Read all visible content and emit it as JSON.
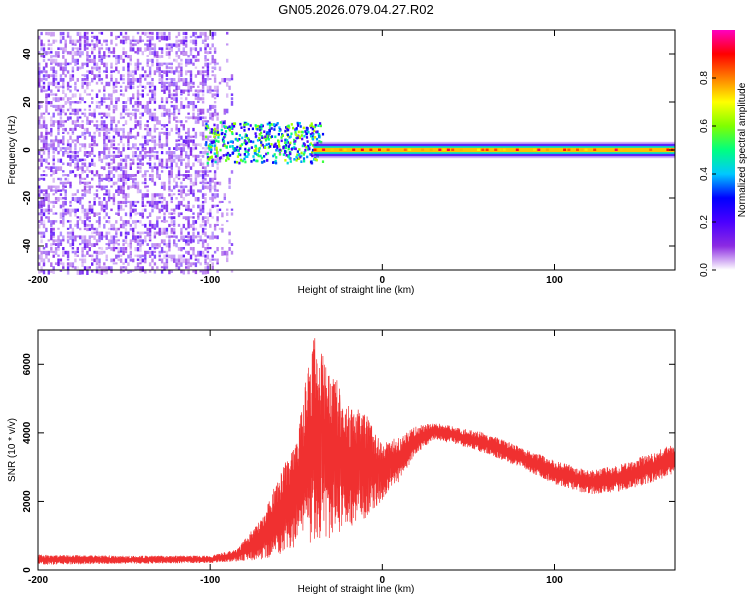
{
  "title": "GN05.2026.079.04.27.R02",
  "chart_data": [
    {
      "type": "heatmap",
      "xlabel": "Height of straight line (km)",
      "ylabel": "Frequency (Hz)",
      "xlim": [
        -200,
        170
      ],
      "ylim": [
        -50,
        50
      ],
      "xticks": [
        -200,
        -100,
        0,
        100
      ],
      "xtick_labels": [
        "-200",
        "-100",
        "0",
        "100"
      ],
      "yticks": [
        -40,
        -20,
        0,
        20,
        40
      ],
      "ytick_labels": [
        "-40",
        "-20",
        "0",
        "20",
        "40"
      ],
      "colorbar": {
        "label": "Normalized spectral amplitude",
        "range": [
          0,
          1
        ],
        "ticks": [
          0.0,
          0.2,
          0.4,
          0.6,
          0.8
        ],
        "tick_labels": [
          "0.0",
          "0.2",
          "0.4",
          "0.6",
          "0.8"
        ],
        "colormap": [
          "#ffffff",
          "#8c2be2",
          "#4b00ff",
          "#0000ff",
          "#00c8ff",
          "#00ff80",
          "#80ff00",
          "#ffff00",
          "#ff8000",
          "#ff0000",
          "#ff00c0"
        ]
      },
      "regions": [
        {
          "desc": "broadband noise",
          "x_range": [
            -200,
            -95
          ],
          "y_range": [
            -50,
            50
          ],
          "amplitude": 0.15
        },
        {
          "desc": "onset cluster",
          "x_range": [
            -103,
            -35
          ],
          "y_range": [
            -5,
            12
          ],
          "amplitude": 0.55
        },
        {
          "desc": "narrow line near 0 Hz",
          "x_range": [
            -40,
            170
          ],
          "y_range": [
            -3,
            3
          ],
          "amplitude": 0.75
        }
      ]
    },
    {
      "type": "line",
      "xlabel": "Height of straight line (km)",
      "ylabel": "SNR (10 * v/v)",
      "xlim": [
        -200,
        170
      ],
      "ylim": [
        0,
        7000
      ],
      "xticks": [
        -200,
        -100,
        0,
        100
      ],
      "xtick_labels": [
        "-200",
        "-100",
        "0",
        "100"
      ],
      "yticks": [
        0,
        2000,
        4000,
        6000
      ],
      "ytick_labels": [
        "0",
        "2000",
        "4000",
        "6000"
      ],
      "color": "#f03030",
      "envelope": {
        "x": [
          -200,
          -150,
          -100,
          -85,
          -70,
          -60,
          -50,
          -40,
          -30,
          -20,
          -10,
          0,
          10,
          20,
          30,
          40,
          60,
          80,
          100,
          120,
          140,
          160,
          170
        ],
        "low": [
          150,
          180,
          200,
          250,
          300,
          450,
          700,
          800,
          900,
          1200,
          1500,
          2000,
          2600,
          3400,
          3800,
          3700,
          3400,
          3000,
          2500,
          2200,
          2300,
          2600,
          2800
        ],
        "high": [
          450,
          420,
          420,
          600,
          1500,
          2700,
          3800,
          6800,
          5800,
          4800,
          4500,
          3700,
          3900,
          4200,
          4300,
          4200,
          4000,
          3600,
          3200,
          2900,
          3100,
          3500,
          3700
        ]
      }
    }
  ]
}
